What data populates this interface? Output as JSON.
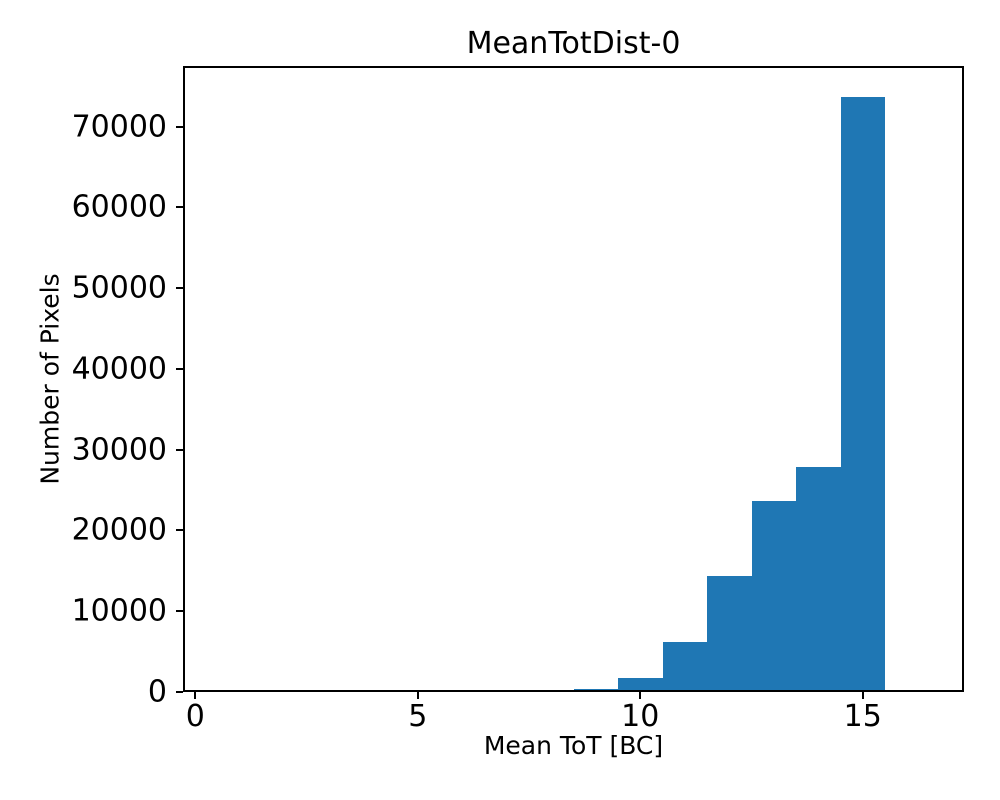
{
  "figure": {
    "title": "MeanTotDist-0",
    "xlabel": "Mean ToT [BC]",
    "ylabel": "Number of Pixels"
  },
  "chart_data": {
    "type": "bar",
    "subtype": "histogram",
    "title": "MeanTotDist-0",
    "xlabel": "Mean ToT [BC]",
    "ylabel": "Number of Pixels",
    "bin_width": 1.0,
    "bin_edges": [
      8.5,
      9.5,
      10.5,
      11.5,
      12.5,
      13.5,
      14.5,
      15.5
    ],
    "counts": [
      350,
      1700,
      6200,
      14400,
      23600,
      27900,
      73700
    ],
    "xlim": [
      -0.275,
      17.275
    ],
    "ylim": [
      0,
      77500
    ],
    "xticks": [
      0,
      5,
      10,
      15
    ],
    "yticks": [
      0,
      10000,
      20000,
      30000,
      40000,
      50000,
      60000,
      70000
    ],
    "grid": "off",
    "legend": "none",
    "bar_color": "#1f77b4",
    "axis_color": "#000000",
    "background_color": "#ffffff"
  }
}
